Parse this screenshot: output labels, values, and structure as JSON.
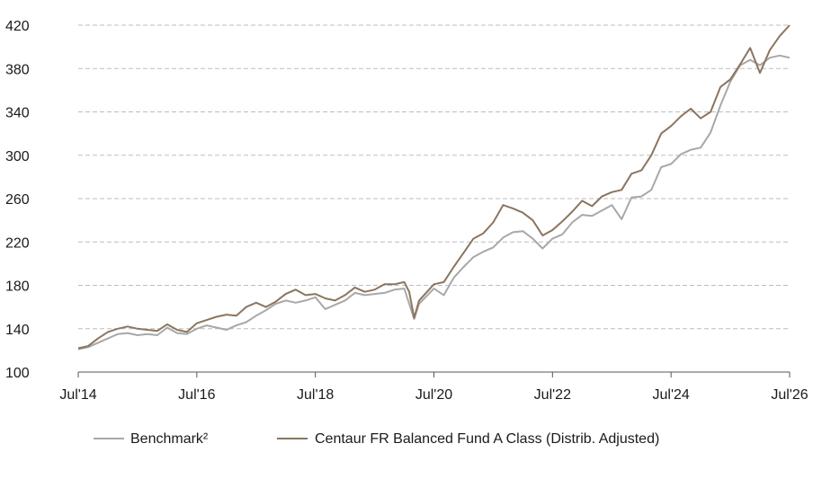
{
  "chart_data": {
    "type": "line",
    "title": "",
    "xlabel": "",
    "ylabel": "",
    "ylim": [
      100,
      420
    ],
    "yticks": [
      100,
      140,
      180,
      220,
      260,
      300,
      340,
      380,
      420
    ],
    "xlim": [
      "2014-07",
      "2026-07"
    ],
    "xticks": [
      {
        "x": "2014-07",
        "label": "Jul'14"
      },
      {
        "x": "2016-07",
        "label": "Jul'16"
      },
      {
        "x": "2018-07",
        "label": "Jul'18"
      },
      {
        "x": "2020-07",
        "label": "Jul'20"
      },
      {
        "x": "2022-07",
        "label": "Jul'22"
      },
      {
        "x": "2024-07",
        "label": "Jul'24"
      },
      {
        "x": "2026-07",
        "label": "Jul'26"
      }
    ],
    "grid": "horizontal dashed",
    "legend_position": "bottom",
    "series": [
      {
        "name": "Benchmark²",
        "color": "#a8a8a8",
        "points": [
          [
            "2014-07",
            121
          ],
          [
            "2014-09",
            123
          ],
          [
            "2014-11",
            127
          ],
          [
            "2015-01",
            131
          ],
          [
            "2015-03",
            135
          ],
          [
            "2015-05",
            136
          ],
          [
            "2015-07",
            134
          ],
          [
            "2015-09",
            135
          ],
          [
            "2015-11",
            134
          ],
          [
            "2016-01",
            141
          ],
          [
            "2016-03",
            136
          ],
          [
            "2016-05",
            135
          ],
          [
            "2016-07",
            140
          ],
          [
            "2016-09",
            143
          ],
          [
            "2016-11",
            141
          ],
          [
            "2017-01",
            139
          ],
          [
            "2017-03",
            143
          ],
          [
            "2017-05",
            146
          ],
          [
            "2017-07",
            152
          ],
          [
            "2017-09",
            157
          ],
          [
            "2017-11",
            163
          ],
          [
            "2018-01",
            166
          ],
          [
            "2018-03",
            164
          ],
          [
            "2018-05",
            166
          ],
          [
            "2018-07",
            169
          ],
          [
            "2018-09",
            158
          ],
          [
            "2018-11",
            162
          ],
          [
            "2019-01",
            166
          ],
          [
            "2019-03",
            173
          ],
          [
            "2019-05",
            171
          ],
          [
            "2019-07",
            172
          ],
          [
            "2019-09",
            173
          ],
          [
            "2019-11",
            176
          ],
          [
            "2020-01",
            177
          ],
          [
            "2020-02",
            163
          ],
          [
            "2020-03",
            149
          ],
          [
            "2020-04",
            163
          ],
          [
            "2020-07",
            177
          ],
          [
            "2020-09",
            171
          ],
          [
            "2020-11",
            187
          ],
          [
            "2021-01",
            197
          ],
          [
            "2021-03",
            206
          ],
          [
            "2021-05",
            211
          ],
          [
            "2021-07",
            215
          ],
          [
            "2021-09",
            224
          ],
          [
            "2021-11",
            229
          ],
          [
            "2022-01",
            230
          ],
          [
            "2022-03",
            223
          ],
          [
            "2022-05",
            214
          ],
          [
            "2022-07",
            223
          ],
          [
            "2022-09",
            227
          ],
          [
            "2022-11",
            238
          ],
          [
            "2023-01",
            245
          ],
          [
            "2023-03",
            244
          ],
          [
            "2023-05",
            249
          ],
          [
            "2023-07",
            254
          ],
          [
            "2023-09",
            241
          ],
          [
            "2023-11",
            261
          ],
          [
            "2024-01",
            262
          ],
          [
            "2024-03",
            268
          ],
          [
            "2024-05",
            289
          ],
          [
            "2024-07",
            292
          ],
          [
            "2024-09",
            301
          ],
          [
            "2024-11",
            305
          ],
          [
            "2025-01",
            307
          ],
          [
            "2025-03",
            321
          ],
          [
            "2025-05",
            346
          ],
          [
            "2025-07",
            368
          ],
          [
            "2025-09",
            383
          ],
          [
            "2025-11",
            388
          ],
          [
            "2026-01",
            383
          ],
          [
            "2026-03",
            390
          ],
          [
            "2026-05",
            392
          ],
          [
            "2026-07",
            390
          ]
        ]
      },
      {
        "name": "Centaur FR Balanced Fund A Class (Distrib. Adjusted)",
        "color": "#8b7560",
        "points": [
          [
            "2014-07",
            122
          ],
          [
            "2014-09",
            124
          ],
          [
            "2014-11",
            131
          ],
          [
            "2015-01",
            137
          ],
          [
            "2015-03",
            140
          ],
          [
            "2015-05",
            142
          ],
          [
            "2015-07",
            140
          ],
          [
            "2015-09",
            139
          ],
          [
            "2015-11",
            138
          ],
          [
            "2016-01",
            144
          ],
          [
            "2016-03",
            139
          ],
          [
            "2016-05",
            137
          ],
          [
            "2016-07",
            145
          ],
          [
            "2016-09",
            148
          ],
          [
            "2016-11",
            151
          ],
          [
            "2017-01",
            153
          ],
          [
            "2017-03",
            152
          ],
          [
            "2017-05",
            160
          ],
          [
            "2017-07",
            164
          ],
          [
            "2017-09",
            160
          ],
          [
            "2017-11",
            165
          ],
          [
            "2018-01",
            172
          ],
          [
            "2018-03",
            176
          ],
          [
            "2018-05",
            171
          ],
          [
            "2018-07",
            172
          ],
          [
            "2018-09",
            168
          ],
          [
            "2018-11",
            166
          ],
          [
            "2019-01",
            171
          ],
          [
            "2019-03",
            178
          ],
          [
            "2019-05",
            174
          ],
          [
            "2019-07",
            176
          ],
          [
            "2019-09",
            181
          ],
          [
            "2019-11",
            181
          ],
          [
            "2020-01",
            183
          ],
          [
            "2020-02",
            174
          ],
          [
            "2020-03",
            150
          ],
          [
            "2020-04",
            166
          ],
          [
            "2020-07",
            181
          ],
          [
            "2020-09",
            183
          ],
          [
            "2020-11",
            197
          ],
          [
            "2021-01",
            210
          ],
          [
            "2021-03",
            223
          ],
          [
            "2021-05",
            228
          ],
          [
            "2021-07",
            238
          ],
          [
            "2021-09",
            254
          ],
          [
            "2021-11",
            251
          ],
          [
            "2022-01",
            247
          ],
          [
            "2022-03",
            240
          ],
          [
            "2022-05",
            226
          ],
          [
            "2022-07",
            231
          ],
          [
            "2022-09",
            239
          ],
          [
            "2022-11",
            248
          ],
          [
            "2023-01",
            258
          ],
          [
            "2023-03",
            253
          ],
          [
            "2023-05",
            262
          ],
          [
            "2023-07",
            266
          ],
          [
            "2023-09",
            268
          ],
          [
            "2023-11",
            283
          ],
          [
            "2024-01",
            286
          ],
          [
            "2024-03",
            300
          ],
          [
            "2024-05",
            320
          ],
          [
            "2024-07",
            327
          ],
          [
            "2024-09",
            336
          ],
          [
            "2024-11",
            343
          ],
          [
            "2025-01",
            334
          ],
          [
            "2025-03",
            340
          ],
          [
            "2025-05",
            363
          ],
          [
            "2025-07",
            370
          ],
          [
            "2025-09",
            384
          ],
          [
            "2025-11",
            399
          ],
          [
            "2026-01",
            376
          ],
          [
            "2026-03",
            397
          ],
          [
            "2026-05",
            410
          ],
          [
            "2026-07",
            420
          ]
        ]
      }
    ]
  }
}
